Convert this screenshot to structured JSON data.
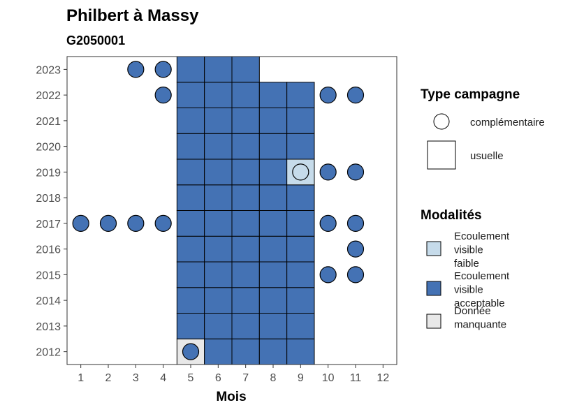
{
  "chart_data": {
    "type": "heatmap",
    "title": "Philbert à Massy",
    "subtitle": "G2050001",
    "xlabel": "Mois",
    "ylabel": "",
    "x_ticks": [
      1,
      2,
      3,
      4,
      5,
      6,
      7,
      8,
      9,
      10,
      11,
      12
    ],
    "y_ticks": [
      2012,
      2013,
      2014,
      2015,
      2016,
      2017,
      2018,
      2019,
      2020,
      2021,
      2022,
      2023
    ],
    "xlim": [
      0.5,
      12.5
    ],
    "ylim": [
      2011.5,
      2023.5
    ],
    "grid": false,
    "colors": {
      "Ecoulement visible faible": "#c6dbea",
      "Ecoulement visible acceptable": "#4472b4",
      "Donnée manquante": "#e8e8e8"
    },
    "usuelle": [
      {
        "year": 2012,
        "month": 5,
        "modalite": "Donnée manquante"
      },
      {
        "year": 2012,
        "month": 6,
        "modalite": "Ecoulement visible acceptable"
      },
      {
        "year": 2012,
        "month": 7,
        "modalite": "Ecoulement visible acceptable"
      },
      {
        "year": 2012,
        "month": 8,
        "modalite": "Ecoulement visible acceptable"
      },
      {
        "year": 2012,
        "month": 9,
        "modalite": "Ecoulement visible acceptable"
      },
      {
        "year": 2013,
        "month": 5,
        "modalite": "Ecoulement visible acceptable"
      },
      {
        "year": 2013,
        "month": 6,
        "modalite": "Ecoulement visible acceptable"
      },
      {
        "year": 2013,
        "month": 7,
        "modalite": "Ecoulement visible acceptable"
      },
      {
        "year": 2013,
        "month": 8,
        "modalite": "Ecoulement visible acceptable"
      },
      {
        "year": 2013,
        "month": 9,
        "modalite": "Ecoulement visible acceptable"
      },
      {
        "year": 2014,
        "month": 5,
        "modalite": "Ecoulement visible acceptable"
      },
      {
        "year": 2014,
        "month": 6,
        "modalite": "Ecoulement visible acceptable"
      },
      {
        "year": 2014,
        "month": 7,
        "modalite": "Ecoulement visible acceptable"
      },
      {
        "year": 2014,
        "month": 8,
        "modalite": "Ecoulement visible acceptable"
      },
      {
        "year": 2014,
        "month": 9,
        "modalite": "Ecoulement visible acceptable"
      },
      {
        "year": 2015,
        "month": 5,
        "modalite": "Ecoulement visible acceptable"
      },
      {
        "year": 2015,
        "month": 6,
        "modalite": "Ecoulement visible acceptable"
      },
      {
        "year": 2015,
        "month": 7,
        "modalite": "Ecoulement visible acceptable"
      },
      {
        "year": 2015,
        "month": 8,
        "modalite": "Ecoulement visible acceptable"
      },
      {
        "year": 2015,
        "month": 9,
        "modalite": "Ecoulement visible acceptable"
      },
      {
        "year": 2016,
        "month": 5,
        "modalite": "Ecoulement visible acceptable"
      },
      {
        "year": 2016,
        "month": 6,
        "modalite": "Ecoulement visible acceptable"
      },
      {
        "year": 2016,
        "month": 7,
        "modalite": "Ecoulement visible acceptable"
      },
      {
        "year": 2016,
        "month": 8,
        "modalite": "Ecoulement visible acceptable"
      },
      {
        "year": 2016,
        "month": 9,
        "modalite": "Ecoulement visible acceptable"
      },
      {
        "year": 2017,
        "month": 5,
        "modalite": "Ecoulement visible acceptable"
      },
      {
        "year": 2017,
        "month": 6,
        "modalite": "Ecoulement visible acceptable"
      },
      {
        "year": 2017,
        "month": 7,
        "modalite": "Ecoulement visible acceptable"
      },
      {
        "year": 2017,
        "month": 8,
        "modalite": "Ecoulement visible acceptable"
      },
      {
        "year": 2017,
        "month": 9,
        "modalite": "Ecoulement visible acceptable"
      },
      {
        "year": 2018,
        "month": 5,
        "modalite": "Ecoulement visible acceptable"
      },
      {
        "year": 2018,
        "month": 6,
        "modalite": "Ecoulement visible acceptable"
      },
      {
        "year": 2018,
        "month": 7,
        "modalite": "Ecoulement visible acceptable"
      },
      {
        "year": 2018,
        "month": 8,
        "modalite": "Ecoulement visible acceptable"
      },
      {
        "year": 2018,
        "month": 9,
        "modalite": "Ecoulement visible acceptable"
      },
      {
        "year": 2019,
        "month": 5,
        "modalite": "Ecoulement visible acceptable"
      },
      {
        "year": 2019,
        "month": 6,
        "modalite": "Ecoulement visible acceptable"
      },
      {
        "year": 2019,
        "month": 7,
        "modalite": "Ecoulement visible acceptable"
      },
      {
        "year": 2019,
        "month": 8,
        "modalite": "Ecoulement visible acceptable"
      },
      {
        "year": 2019,
        "month": 9,
        "modalite": "Ecoulement visible faible"
      },
      {
        "year": 2020,
        "month": 5,
        "modalite": "Ecoulement visible acceptable"
      },
      {
        "year": 2020,
        "month": 6,
        "modalite": "Ecoulement visible acceptable"
      },
      {
        "year": 2020,
        "month": 7,
        "modalite": "Ecoulement visible acceptable"
      },
      {
        "year": 2020,
        "month": 8,
        "modalite": "Ecoulement visible acceptable"
      },
      {
        "year": 2020,
        "month": 9,
        "modalite": "Ecoulement visible acceptable"
      },
      {
        "year": 2021,
        "month": 5,
        "modalite": "Ecoulement visible acceptable"
      },
      {
        "year": 2021,
        "month": 6,
        "modalite": "Ecoulement visible acceptable"
      },
      {
        "year": 2021,
        "month": 7,
        "modalite": "Ecoulement visible acceptable"
      },
      {
        "year": 2021,
        "month": 8,
        "modalite": "Ecoulement visible acceptable"
      },
      {
        "year": 2021,
        "month": 9,
        "modalite": "Ecoulement visible acceptable"
      },
      {
        "year": 2022,
        "month": 5,
        "modalite": "Ecoulement visible acceptable"
      },
      {
        "year": 2022,
        "month": 6,
        "modalite": "Ecoulement visible acceptable"
      },
      {
        "year": 2022,
        "month": 7,
        "modalite": "Ecoulement visible acceptable"
      },
      {
        "year": 2022,
        "month": 8,
        "modalite": "Ecoulement visible acceptable"
      },
      {
        "year": 2022,
        "month": 9,
        "modalite": "Ecoulement visible acceptable"
      },
      {
        "year": 2023,
        "month": 5,
        "modalite": "Ecoulement visible acceptable"
      },
      {
        "year": 2023,
        "month": 6,
        "modalite": "Ecoulement visible acceptable"
      },
      {
        "year": 2023,
        "month": 7,
        "modalite": "Ecoulement visible acceptable"
      }
    ],
    "complementaire": [
      {
        "year": 2012,
        "month": 5,
        "modalite": "Ecoulement visible acceptable"
      },
      {
        "year": 2015,
        "month": 10,
        "modalite": "Ecoulement visible acceptable"
      },
      {
        "year": 2015,
        "month": 11,
        "modalite": "Ecoulement visible acceptable"
      },
      {
        "year": 2016,
        "month": 11,
        "modalite": "Ecoulement visible acceptable"
      },
      {
        "year": 2017,
        "month": 1,
        "modalite": "Ecoulement visible acceptable"
      },
      {
        "year": 2017,
        "month": 2,
        "modalite": "Ecoulement visible acceptable"
      },
      {
        "year": 2017,
        "month": 3,
        "modalite": "Ecoulement visible acceptable"
      },
      {
        "year": 2017,
        "month": 4,
        "modalite": "Ecoulement visible acceptable"
      },
      {
        "year": 2017,
        "month": 10,
        "modalite": "Ecoulement visible acceptable"
      },
      {
        "year": 2017,
        "month": 11,
        "modalite": "Ecoulement visible acceptable"
      },
      {
        "year": 2019,
        "month": 9,
        "modalite": "Ecoulement visible faible"
      },
      {
        "year": 2019,
        "month": 10,
        "modalite": "Ecoulement visible acceptable"
      },
      {
        "year": 2019,
        "month": 11,
        "modalite": "Ecoulement visible acceptable"
      },
      {
        "year": 2022,
        "month": 4,
        "modalite": "Ecoulement visible acceptable"
      },
      {
        "year": 2022,
        "month": 10,
        "modalite": "Ecoulement visible acceptable"
      },
      {
        "year": 2022,
        "month": 11,
        "modalite": "Ecoulement visible acceptable"
      },
      {
        "year": 2023,
        "month": 3,
        "modalite": "Ecoulement visible acceptable"
      },
      {
        "year": 2023,
        "month": 4,
        "modalite": "Ecoulement visible acceptable"
      }
    ],
    "legend": {
      "placement": "right",
      "type_title": "Type campagne",
      "type_items": [
        "complémentaire",
        "usuelle"
      ],
      "modalites_title": "Modalités",
      "modalites_items": [
        {
          "lines": [
            "Ecoulement",
            "visible",
            "faible"
          ],
          "color": "#c6dbea"
        },
        {
          "lines": [
            "Ecoulement",
            "visible",
            "acceptable"
          ],
          "color": "#4472b4"
        },
        {
          "lines": [
            "Donnée",
            "manquante"
          ],
          "color": "#e8e8e8"
        }
      ]
    }
  }
}
